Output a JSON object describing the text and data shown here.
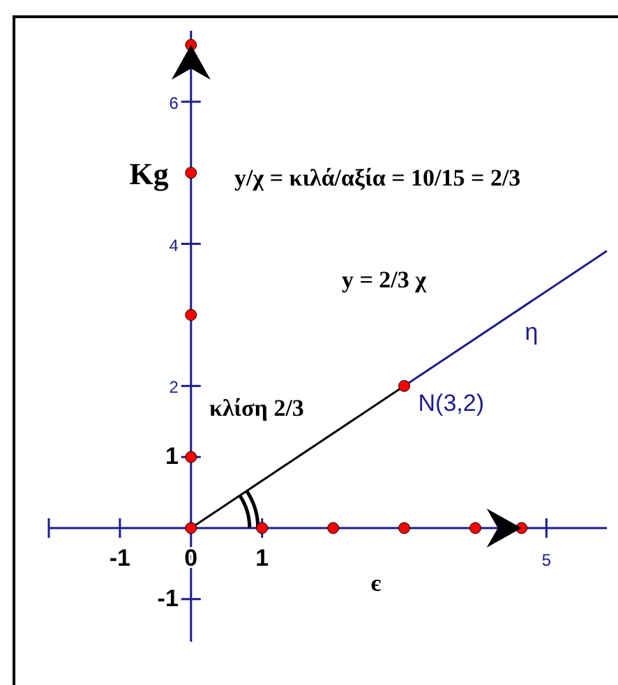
{
  "chart_data": {
    "type": "line",
    "xlabel": "є",
    "ylabel": "Kg",
    "xlim": [
      -2,
      5.85
    ],
    "ylim": [
      -1.6,
      7
    ],
    "xticks": [
      {
        "value": -2,
        "label": null
      },
      -1,
      0,
      1,
      5
    ],
    "yticks": [
      -1,
      1,
      2,
      4,
      6
    ],
    "grid": false,
    "series": [
      {
        "color": "#000000",
        "x": [
          0,
          3
        ],
        "values": [
          0,
          2
        ]
      },
      {
        "color": "#1c1c8c",
        "x": [
          3,
          5.85
        ],
        "values": [
          2,
          3.9
        ]
      },
      {
        "type": "scatter",
        "color": "#ff0000",
        "x": [
          0,
          1,
          2,
          3,
          4,
          4.65,
          0,
          0,
          0,
          0,
          3
        ],
        "values": [
          0,
          0,
          0,
          0,
          0,
          0,
          1,
          3,
          5,
          6.8,
          2
        ],
        "marker": "circle"
      }
    ],
    "annotations": [
      "y/χ = κιλά/αξία = 10/15 = 2/3",
      "y = 2/3 χ",
      "κλίση 2/3",
      {
        "text": "N(3,2)",
        "x": 3,
        "y": 2
      },
      {
        "text": "η",
        "x": 4.5,
        "y": 3
      }
    ]
  }
}
